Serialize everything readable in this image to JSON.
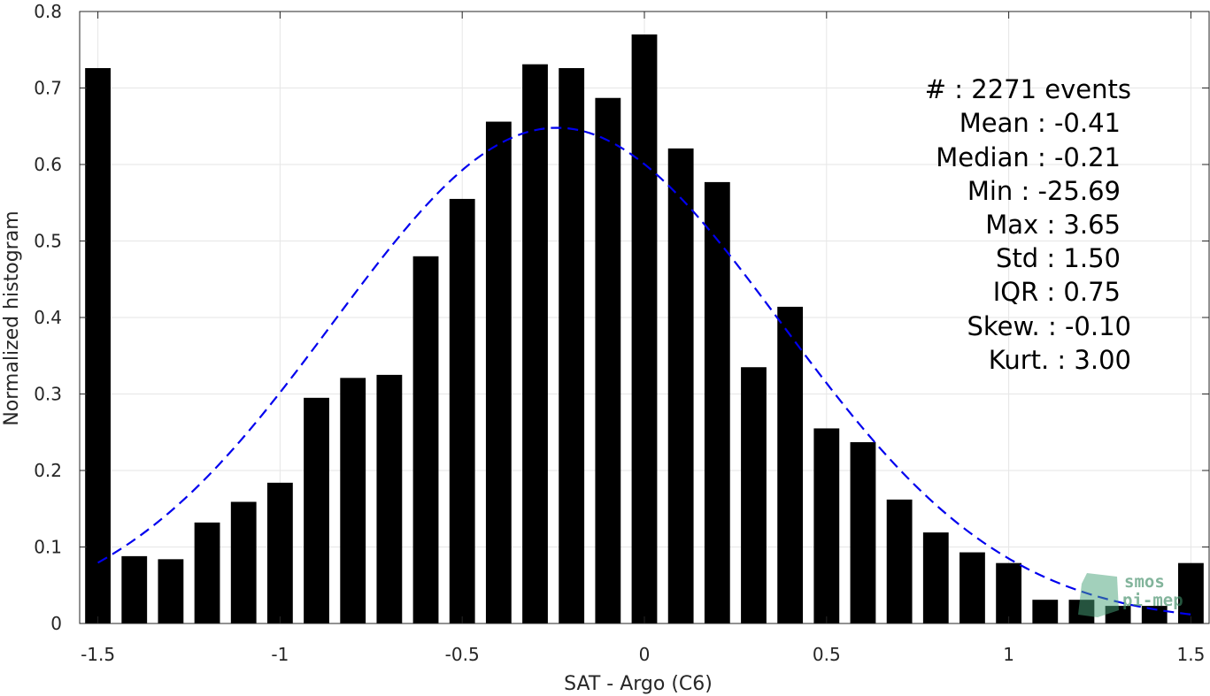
{
  "chart_data": {
    "type": "bar",
    "xlabel": "SAT - Argo (C6)",
    "ylabel": "Normalized histogram",
    "xlim": [
      -1.55,
      1.55
    ],
    "ylim": [
      0,
      0.8
    ],
    "xticks": [
      -1.5,
      -1,
      -0.5,
      0,
      0.5,
      1,
      1.5
    ],
    "xtick_labels": [
      "-1.5",
      "-1",
      "-0.5",
      "0",
      "0.5",
      "1",
      "1.5"
    ],
    "yticks": [
      0,
      0.1,
      0.2,
      0.3,
      0.4,
      0.5,
      0.6,
      0.7,
      0.8
    ],
    "ytick_labels": [
      "0",
      "0.1",
      "0.2",
      "0.3",
      "0.4",
      "0.5",
      "0.6",
      "0.7",
      "0.8"
    ],
    "grid": true,
    "bar_width": 0.07,
    "bin_centers": [
      -1.5,
      -1.4,
      -1.3,
      -1.2,
      -1.1,
      -1.0,
      -0.9,
      -0.8,
      -0.7,
      -0.6,
      -0.5,
      -0.4,
      -0.3,
      -0.2,
      -0.1,
      0.0,
      0.1,
      0.2,
      0.3,
      0.4,
      0.5,
      0.6,
      0.7,
      0.8,
      0.9,
      1.0,
      1.1,
      1.2,
      1.3,
      1.4,
      1.5
    ],
    "values": [
      0.726,
      0.088,
      0.084,
      0.132,
      0.159,
      0.184,
      0.295,
      0.321,
      0.325,
      0.48,
      0.555,
      0.656,
      0.731,
      0.726,
      0.687,
      0.77,
      0.621,
      0.577,
      0.335,
      0.414,
      0.255,
      0.237,
      0.162,
      0.119,
      0.093,
      0.079,
      0.031,
      0.031,
      0.023,
      0.023,
      0.079
    ],
    "bar_color": "#000000",
    "fit_curve": {
      "style": "dashed",
      "color": "#0000ee",
      "mean": -0.24,
      "std": 0.615,
      "peak": 0.648,
      "x_range": [
        -1.5,
        1.5
      ]
    },
    "stats": [
      "#  : 2271 events",
      "Mean : -0.41",
      "Median : -0.21",
      "Min : -25.69",
      "Max : 3.65",
      "Std : 1.50",
      "IQR : 0.75",
      "Skew. : -0.10",
      "Kurt. : 3.00"
    ]
  },
  "logo": {
    "line1": "smos",
    "line2": "pi-mep",
    "color": "#3d8a63"
  }
}
